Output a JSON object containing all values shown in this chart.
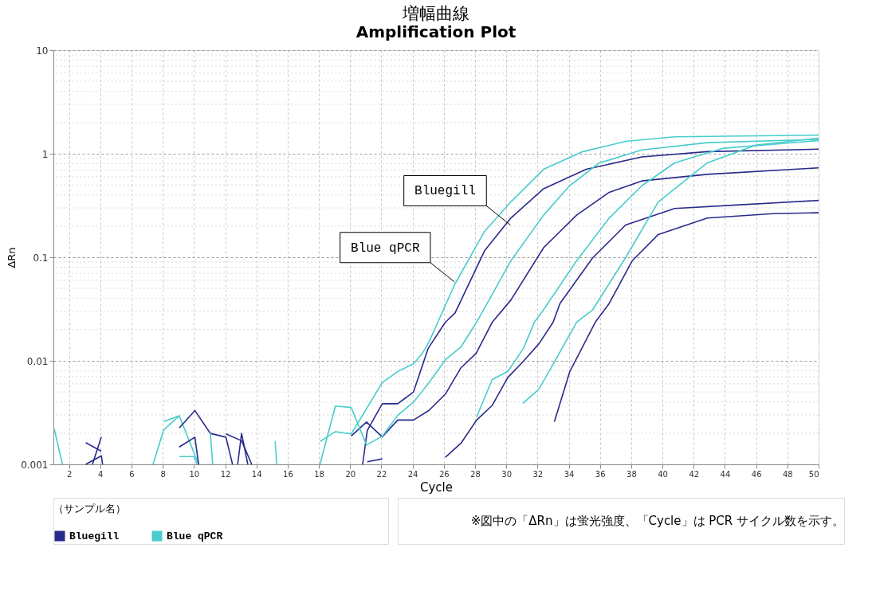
{
  "chart_data": {
    "type": "line",
    "title": "増幅曲線",
    "subtitle": "Amplification Plot",
    "xlabel": "Cycle",
    "ylabel": "ΔRn",
    "legend_title": "（サンプル名）",
    "legend": "bottom left",
    "log": true,
    "grid": true,
    "line_style": "solid",
    "marker": "none",
    "xlim": [
      1,
      50
    ],
    "xticks": [
      2,
      4,
      6,
      8,
      10,
      12,
      14,
      16,
      18,
      20,
      22,
      24,
      26,
      28,
      30,
      32,
      34,
      36,
      38,
      40,
      42,
      44,
      46,
      48,
      50
    ],
    "ylim": [
      0.001,
      10
    ],
    "yticks": [
      0.001,
      0.01,
      0.1,
      1,
      10
    ],
    "series": [
      {
        "name": "Bluegill",
        "color": "#2a2a8c",
        "x": [
          20.8,
          21.1,
          22.06,
          23.05,
          24.06,
          25.0,
          26.1,
          26.72,
          28.61,
          30.29,
          32.39,
          35.12,
          38.68,
          42.87,
          50
        ],
        "values": [
          0.001,
          0.00213,
          0.00385,
          0.00385,
          0.00501,
          0.0132,
          0.0236,
          0.029,
          0.1155,
          0.239,
          0.459,
          0.707,
          0.931,
          1.048,
          1.106
        ]
      },
      {
        "name": "Blue qPCR",
        "color": "#48cccc",
        "x": [
          18.07,
          19.06,
          20.07,
          22.06,
          23.05,
          24.06,
          24.63,
          25.05,
          26.72,
          28.61,
          30.29,
          32.39,
          34.9,
          37.64,
          40.78,
          50
        ],
        "values": [
          0.00166,
          0.00207,
          0.00197,
          0.00615,
          0.0079,
          0.00935,
          0.0118,
          0.0152,
          0.0555,
          0.178,
          0.342,
          0.707,
          1.048,
          1.315,
          1.456,
          1.513
        ]
      },
      {
        "color": "#2a2a8c",
        "x": [
          20.07,
          21.05,
          22.06,
          23.05,
          24.06,
          25.05,
          26.1,
          27.1,
          28.07,
          29.1,
          30.29,
          32.39,
          34.5,
          36.59,
          38.68,
          42.87,
          50
        ],
        "values": [
          0.00188,
          0.00256,
          0.00184,
          0.00268,
          0.00268,
          0.00332,
          0.00477,
          0.00857,
          0.0118,
          0.0236,
          0.0385,
          0.1236,
          0.255,
          0.424,
          0.546,
          0.632,
          0.731
        ]
      },
      {
        "color": "#48cccc",
        "x": [
          18.07,
          19.06,
          20.07,
          21.05,
          22.06,
          23.05,
          24.06,
          25.05,
          26.1,
          27.1,
          28.1,
          30.29,
          32.39,
          34.05,
          35.94,
          38.68,
          42.87,
          50
        ],
        "values": [
          0.001,
          0.00366,
          0.00354,
          0.00154,
          0.00187,
          0.00298,
          0.00399,
          0.00615,
          0.01023,
          0.01363,
          0.0236,
          0.0923,
          0.255,
          0.49,
          0.812,
          1.088,
          1.279,
          1.376
        ]
      },
      {
        "color": "#48cccc",
        "x": [
          28.1,
          29.1,
          30.1,
          31.1,
          31.8,
          32.39,
          34.5,
          36.59,
          38.68,
          40.78,
          43.92,
          50
        ],
        "values": [
          0.00287,
          0.00659,
          0.0079,
          0.0132,
          0.0236,
          0.0312,
          0.0923,
          0.239,
          0.49,
          0.816,
          1.13,
          1.339
        ]
      },
      {
        "color": "#2a2a8c",
        "x": [
          26.1,
          27.1,
          28.1,
          29.1,
          30.1,
          31.1,
          32.1,
          33.0,
          33.44,
          35.54,
          37.64,
          40.78,
          44.96,
          50
        ],
        "values": [
          0.00117,
          0.0016,
          0.00268,
          0.00371,
          0.00691,
          0.0099,
          0.01466,
          0.0236,
          0.0358,
          0.0991,
          0.205,
          0.296,
          0.321,
          0.354
        ]
      },
      {
        "color": "#48cccc",
        "x": [
          31.06,
          32.07,
          33.0,
          34.5,
          35.54,
          37.64,
          39.73,
          42.87,
          46.01,
          50
        ],
        "values": [
          0.00389,
          0.00528,
          0.00924,
          0.0236,
          0.0312,
          0.0991,
          0.342,
          0.816,
          1.216,
          1.413
        ]
      },
      {
        "color": "#2a2a8c",
        "x": [
          33.08,
          34.07,
          35.7,
          36.59,
          38.06,
          39.73,
          42.87,
          47.08,
          50
        ],
        "values": [
          0.00258,
          0.0079,
          0.0236,
          0.0358,
          0.0923,
          0.166,
          0.239,
          0.264,
          0.269
        ]
      },
      {
        "color": "#2a2a8c",
        "x": [
          21.1,
          22.06
        ],
        "values": [
          0.00106,
          0.00113
        ]
      },
      {
        "color": "#48cccc",
        "x": [
          1.05,
          1.58
        ],
        "values": [
          0.00221,
          0.001
        ]
      },
      {
        "color": "#2a2a8c",
        "x": [
          3.07,
          4.07
        ],
        "values": [
          0.00162,
          0.00134
        ]
      },
      {
        "color": "#2a2a8c",
        "x": [
          3.5,
          4.07
        ],
        "values": [
          0.001,
          0.00184
        ]
      },
      {
        "color": "#2a2a8c",
        "x": [
          3.07,
          4.07,
          4.15
        ],
        "values": [
          0.001,
          0.00121,
          0.001
        ]
      },
      {
        "color": "#48cccc",
        "x": [
          7.38,
          8.06,
          9.06,
          10.3
        ],
        "values": [
          0.001,
          0.00215,
          0.00294,
          0.001
        ]
      },
      {
        "color": "#48cccc",
        "x": [
          8.06,
          9.06
        ],
        "values": [
          0.00259,
          0.00294
        ]
      },
      {
        "color": "#48cccc",
        "x": [
          9.06,
          10.0,
          10.2
        ],
        "values": [
          0.00119,
          0.00119,
          0.001
        ]
      },
      {
        "color": "#2a2a8c",
        "x": [
          9.06,
          10.06,
          11.05,
          12.05,
          12.47
        ],
        "values": [
          0.00225,
          0.00331,
          0.00199,
          0.00183,
          0.001
        ]
      },
      {
        "color": "#2a2a8c",
        "x": [
          9.06,
          10.06,
          10.3
        ],
        "values": [
          0.00147,
          0.00183,
          0.001
        ]
      },
      {
        "color": "#2a2a8c",
        "x": [
          12.05,
          13.05,
          13.7
        ],
        "values": [
          0.00197,
          0.00169,
          0.001
        ]
      },
      {
        "color": "#2a2a8c",
        "x": [
          12.8,
          13.05,
          13.45
        ],
        "values": [
          0.001,
          0.00199,
          0.001
        ]
      },
      {
        "color": "#48cccc",
        "x": [
          11.05,
          11.2
        ],
        "values": [
          0.00199,
          0.001
        ]
      },
      {
        "color": "#48cccc",
        "x": [
          15.2,
          15.3
        ],
        "values": [
          0.00168,
          0.001
        ]
      }
    ],
    "annotations": [
      {
        "text": "Bluegill",
        "x": 30.26,
        "y": 0.205
      },
      {
        "text": "Blue qPCR",
        "x": 26.67,
        "y": 0.058
      },
      "※図中の「ΔRn」は蛍光強度、「Cycle」は PCR サイクル数を示す。"
    ]
  }
}
